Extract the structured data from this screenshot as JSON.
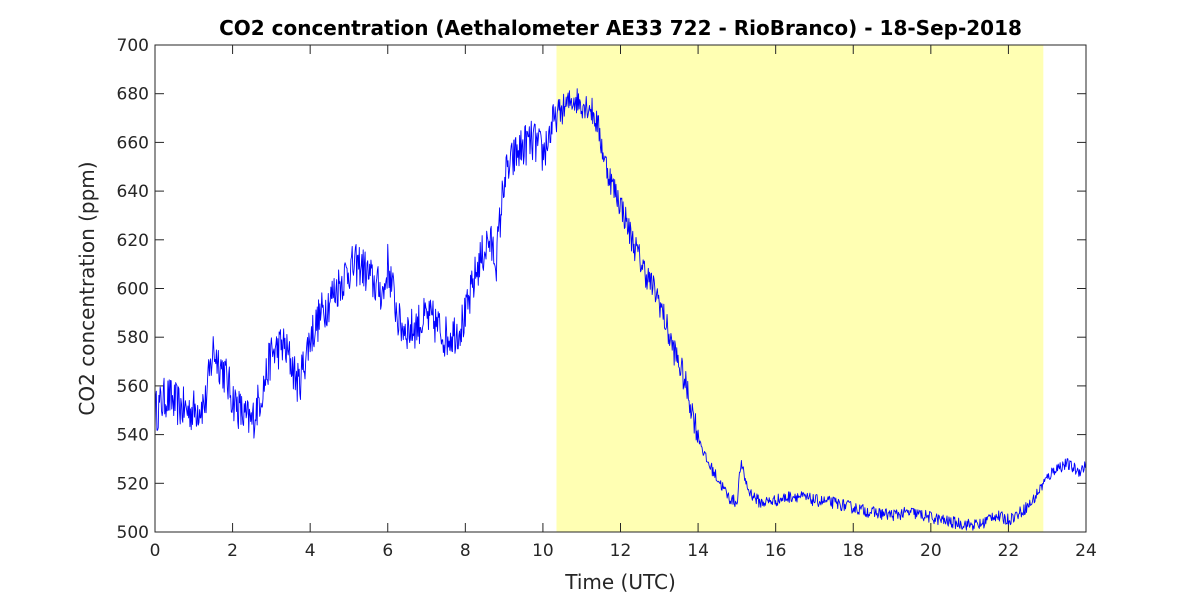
{
  "chart_data": {
    "type": "line",
    "title": "CO2 concentration (Aethalometer AE33 722 - RioBranco) - 18-Sep-2018",
    "xlabel": "Time (UTC)",
    "ylabel": "CO2 concentration (ppm)",
    "xlim": [
      0,
      24
    ],
    "ylim": [
      500,
      700
    ],
    "xticks": [
      0,
      2,
      4,
      6,
      8,
      10,
      12,
      14,
      16,
      18,
      20,
      22,
      24
    ],
    "yticks": [
      500,
      520,
      540,
      560,
      580,
      600,
      620,
      640,
      660,
      680,
      700
    ],
    "grid": false,
    "highlight_band": {
      "x_start": 10.35,
      "x_end": 22.9,
      "color": "#FFFFB3"
    },
    "series": [
      {
        "color": "#0000FF",
        "x": [
          0,
          0.3,
          0.5,
          0.8,
          1.0,
          1.3,
          1.5,
          1.8,
          2.0,
          2.3,
          2.5,
          2.8,
          3.0,
          3.3,
          3.5,
          3.7,
          4.0,
          4.3,
          4.6,
          5.0,
          5.3,
          5.6,
          5.9,
          6.0,
          6.3,
          6.6,
          7.0,
          7.2,
          7.5,
          7.8,
          8.0,
          8.3,
          8.6,
          8.8,
          9.0,
          9.3,
          9.6,
          9.8,
          10.0,
          10.2,
          10.4,
          10.6,
          10.8,
          11.0,
          11.2,
          11.4,
          11.6,
          11.8,
          12.0,
          12.3,
          12.6,
          13.0,
          13.3,
          13.6,
          13.8,
          14.0,
          14.2,
          14.5,
          14.8,
          15.0,
          15.1,
          15.3,
          15.6,
          16.0,
          16.5,
          17.0,
          17.5,
          18.0,
          18.5,
          19.0,
          19.5,
          20.0,
          20.5,
          21.0,
          21.3,
          21.6,
          22.0,
          22.3,
          22.6,
          22.9,
          23.2,
          23.5,
          23.8,
          24.0
        ],
        "y": [
          549,
          556,
          553,
          550,
          550,
          553,
          575,
          565,
          555,
          547,
          545,
          560,
          573,
          577,
          570,
          560,
          580,
          590,
          598,
          608,
          610,
          603,
          598,
          610,
          585,
          583,
          588,
          586,
          580,
          583,
          588,
          608,
          620,
          612,
          645,
          655,
          660,
          660,
          655,
          665,
          672,
          675,
          678,
          676,
          675,
          668,
          652,
          642,
          635,
          620,
          608,
          595,
          578,
          565,
          553,
          540,
          530,
          522,
          514,
          512,
          528,
          517,
          512,
          513,
          515,
          513,
          512,
          510,
          508,
          507,
          508,
          506,
          504,
          503,
          503,
          507,
          505,
          508,
          512,
          520,
          526,
          528,
          525,
          527
        ]
      }
    ]
  }
}
